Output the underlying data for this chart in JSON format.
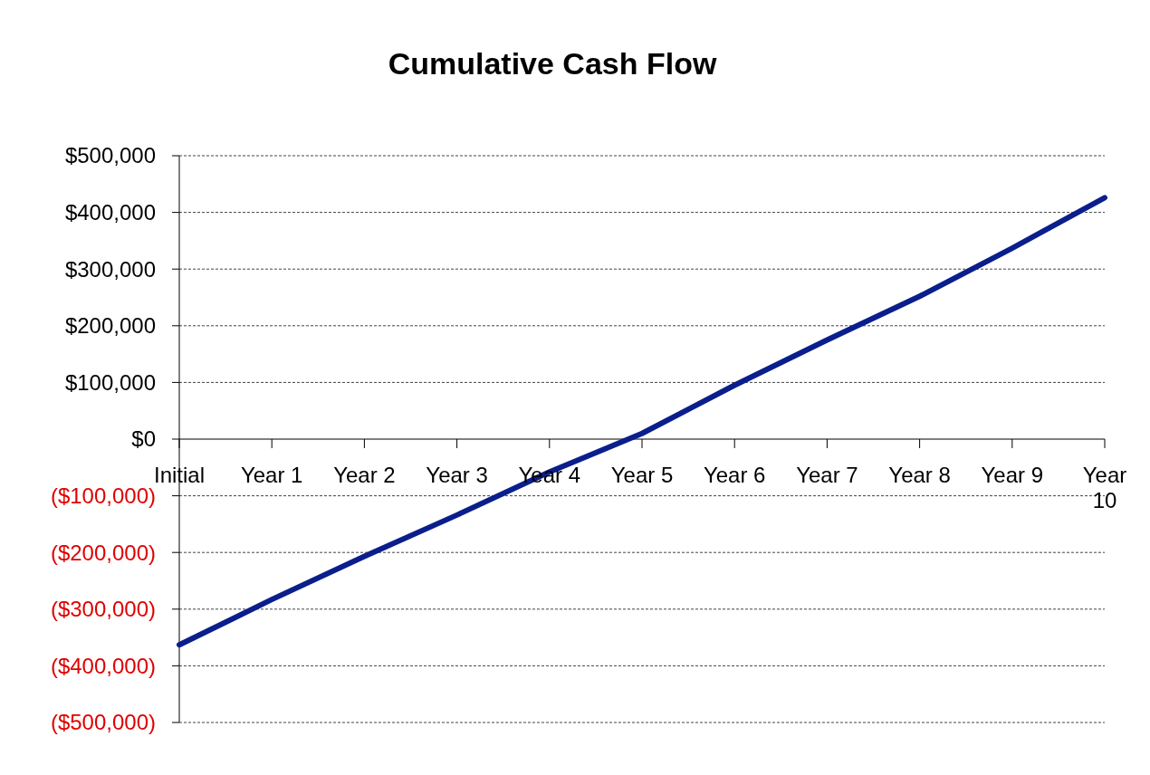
{
  "chart_data": {
    "type": "line",
    "title": "Cumulative Cash Flow",
    "categories": [
      "Initial",
      "Year 1",
      "Year 2",
      "Year 3",
      "Year 4",
      "Year 5",
      "Year 6",
      "Year 7",
      "Year 8",
      "Year 9",
      "Year 10"
    ],
    "series": [
      {
        "color": "#0a1e8c",
        "values": [
          -363000,
          -283000,
          -207000,
          -134000,
          -58000,
          10000,
          95000,
          175000,
          252000,
          337000,
          426000
        ]
      }
    ],
    "ylim": [
      -500000,
      500000
    ],
    "yticks": [
      {
        "value": -500000,
        "label": "($500,000)"
      },
      {
        "value": -400000,
        "label": "($400,000)"
      },
      {
        "value": -300000,
        "label": "($300,000)"
      },
      {
        "value": -200000,
        "label": "($200,000)"
      },
      {
        "value": -100000,
        "label": "($100,000)"
      },
      {
        "value": 0,
        "label": "$0"
      },
      {
        "value": 100000,
        "label": "$100,000"
      },
      {
        "value": 200000,
        "label": "$200,000"
      },
      {
        "value": 300000,
        "label": "$300,000"
      },
      {
        "value": 400000,
        "label": "$400,000"
      },
      {
        "value": 500000,
        "label": "$500,000"
      }
    ],
    "grid": "y",
    "marker": "none",
    "line_style": "solid"
  }
}
